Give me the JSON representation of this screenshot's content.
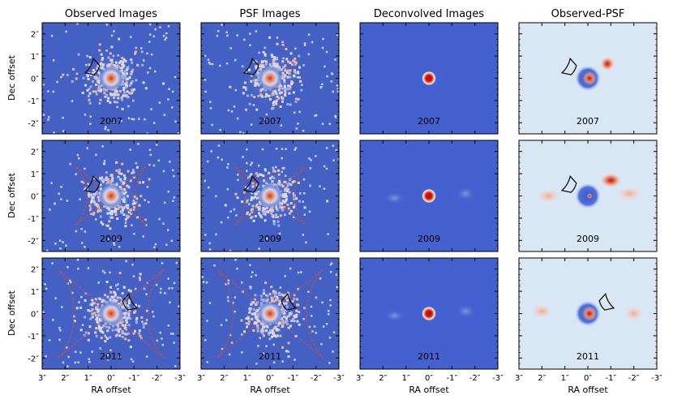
{
  "figure": {
    "column_titles": [
      "Observed Images",
      "PSF Images",
      "Deconvolved Images",
      "Observed-PSF"
    ],
    "row_years": [
      "2007",
      "2009",
      "2011"
    ],
    "ylabel": "Dec offset",
    "xlabel": "RA offset",
    "y_ticks": [
      "2″",
      "1″",
      "0″",
      "-1″",
      "-2″"
    ],
    "x_ticks": [
      "3″",
      "2″",
      "1″",
      "0″",
      "-1″",
      "-2″",
      "-3″"
    ]
  },
  "chart_data": {
    "type": "heatmap",
    "title": "",
    "columns": [
      "Observed Images",
      "PSF Images",
      "Deconvolved Images",
      "Observed-PSF"
    ],
    "rows": [
      "2007",
      "2009",
      "2011"
    ],
    "xlabel": "RA offset",
    "ylabel": "Dec offset",
    "x_axis": {
      "ticks": [
        3,
        2,
        1,
        0,
        -1,
        -2,
        -3
      ],
      "unit": "arcsec",
      "xlim": [
        3,
        -3
      ]
    },
    "y_axis": {
      "ticks": [
        2,
        1,
        0,
        -1,
        -2
      ],
      "unit": "arcsec",
      "ylim": [
        -2.5,
        2.5
      ]
    },
    "colormap": {
      "name": "diverging blue-white-red",
      "low": "#3b4cc0",
      "mid": "#dddddd",
      "high": "#b40426"
    },
    "overlays": {
      "black_wedge": "annular sector at ~1″ toward upper right (RA ~ -0.8″, Dec ~ +0.7″)",
      "red_dashed_sectors": {
        "2007": "none",
        "2009": "two annular sectors east and west, radius ~2″",
        "2011": "two large annular sectors east and west, radius ~3″"
      }
    }
  }
}
